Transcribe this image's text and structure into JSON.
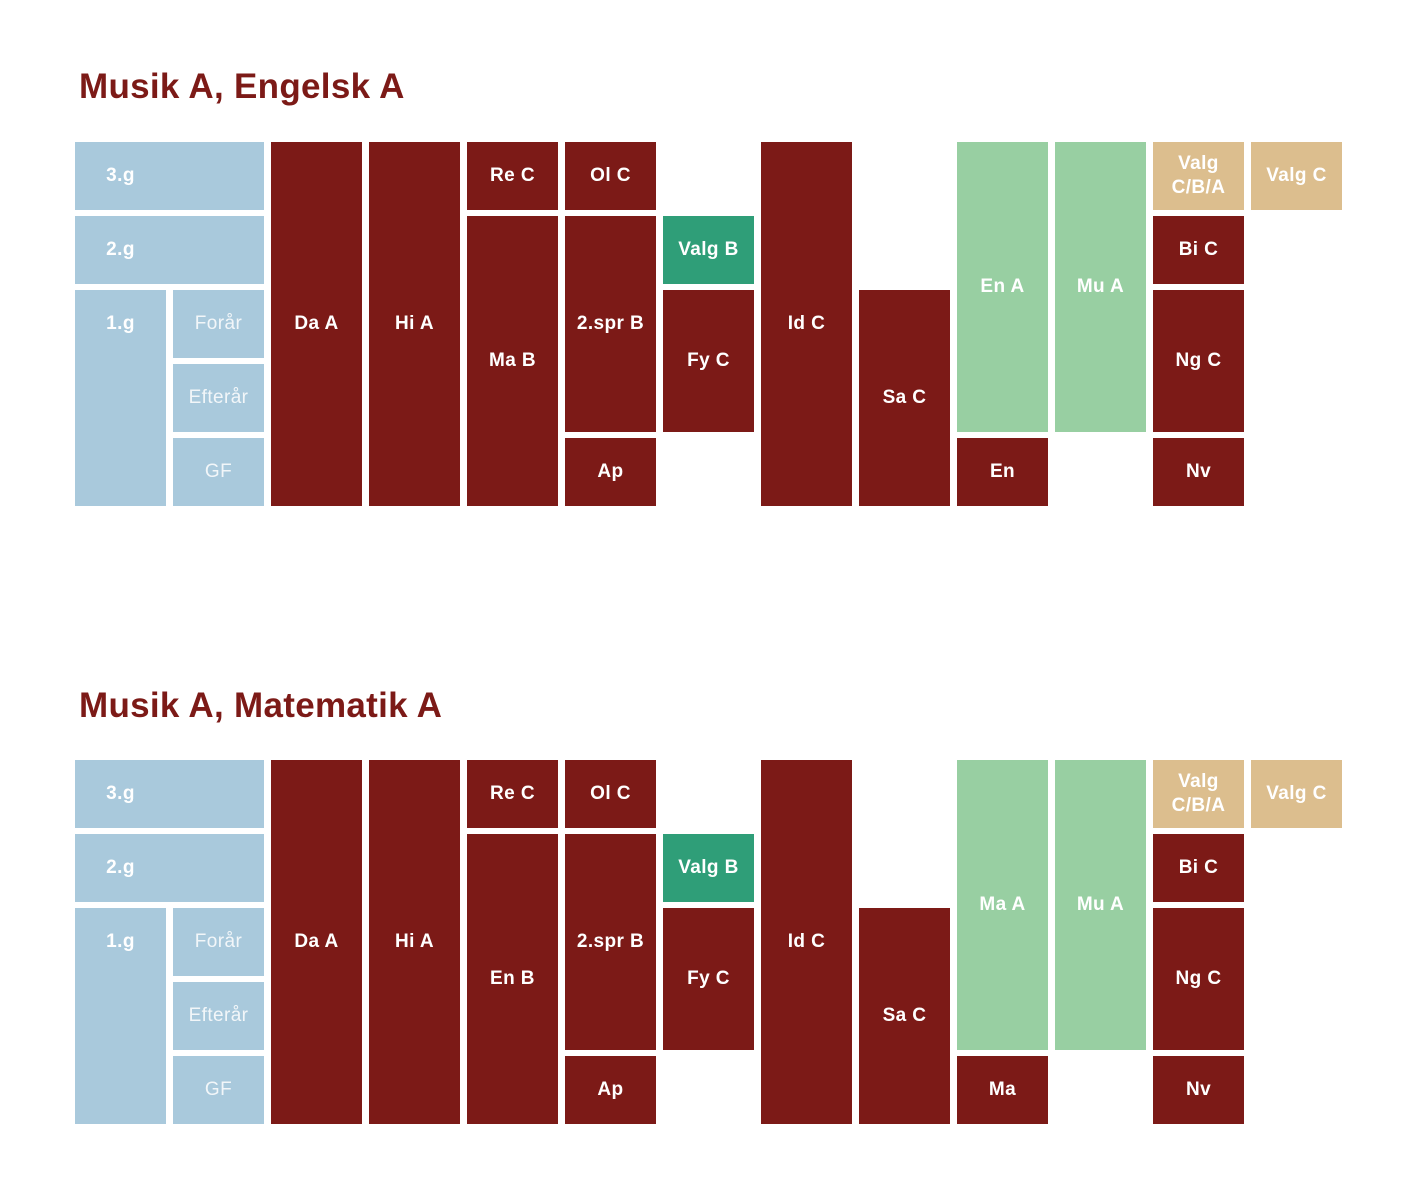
{
  "colors": {
    "background": "#ffffff",
    "title_text": "#7c1a17",
    "red": "#7c1a17",
    "blue": "#a9c9dc",
    "green": "#2f9e78",
    "light_green": "#98cfa2",
    "tan": "#dcbe8e",
    "block_text": "#ffffff"
  },
  "diagrams": [
    {
      "title": "Musik A, Engelsk A",
      "blocks": [
        {
          "label": "3.g",
          "color": "blue",
          "col": 1,
          "row": 1,
          "colspan": 2,
          "rowspan": 1,
          "kind": "year"
        },
        {
          "label": "2.g",
          "color": "blue",
          "col": 1,
          "row": 2,
          "colspan": 2,
          "rowspan": 1,
          "kind": "year"
        },
        {
          "label": "1.g",
          "color": "blue",
          "col": 1,
          "row": 3,
          "colspan": 1,
          "rowspan": 3,
          "kind": "year"
        },
        {
          "label": "Forår",
          "color": "blue",
          "col": 2,
          "row": 3,
          "kind": "semester"
        },
        {
          "label": "Efterår",
          "color": "blue",
          "col": 2,
          "row": 4,
          "kind": "semester"
        },
        {
          "label": "GF",
          "color": "blue",
          "col": 2,
          "row": 5,
          "kind": "semester"
        },
        {
          "label": "Da A",
          "color": "red",
          "col": 3,
          "row": 1,
          "rowspan": 5
        },
        {
          "label": "Hi A",
          "color": "red",
          "col": 4,
          "row": 1,
          "rowspan": 5
        },
        {
          "label": "Re C",
          "color": "red",
          "col": 5,
          "row": 1
        },
        {
          "label": "Ma B",
          "color": "red",
          "col": 5,
          "row": 2,
          "rowspan": 4
        },
        {
          "label": "Ol C",
          "color": "red",
          "col": 6,
          "row": 1
        },
        {
          "label": "2.spr B",
          "color": "red",
          "col": 6,
          "row": 2,
          "rowspan": 3
        },
        {
          "label": "Ap",
          "color": "red",
          "col": 6,
          "row": 5
        },
        {
          "label": "Valg B",
          "color": "green",
          "col": 7,
          "row": 2
        },
        {
          "label": "Fy C",
          "color": "red",
          "col": 7,
          "row": 3,
          "rowspan": 2
        },
        {
          "label": "Id C",
          "color": "red",
          "col": 8,
          "row": 1,
          "rowspan": 5
        },
        {
          "label": "Sa C",
          "color": "red",
          "col": 9,
          "row": 3,
          "rowspan": 3
        },
        {
          "label": "En A",
          "color": "light_green",
          "col": 10,
          "row": 1,
          "rowspan": 4
        },
        {
          "label": "En",
          "color": "red",
          "col": 10,
          "row": 5
        },
        {
          "label": "Mu A",
          "color": "light_green",
          "col": 11,
          "row": 1,
          "rowspan": 4
        },
        {
          "label": "Valg C/B/A",
          "lines": [
            "Valg",
            "C/B/A"
          ],
          "color": "tan",
          "col": 12,
          "row": 1
        },
        {
          "label": "Bi C",
          "color": "red",
          "col": 12,
          "row": 2
        },
        {
          "label": "Ng C",
          "color": "red",
          "col": 12,
          "row": 3,
          "rowspan": 2
        },
        {
          "label": "Nv",
          "color": "red",
          "col": 12,
          "row": 5
        },
        {
          "label": "Valg C",
          "color": "tan",
          "col": 13,
          "row": 1
        }
      ]
    },
    {
      "title": "Musik A, Matematik A",
      "blocks": [
        {
          "label": "3.g",
          "color": "blue",
          "col": 1,
          "row": 1,
          "colspan": 2,
          "rowspan": 1,
          "kind": "year"
        },
        {
          "label": "2.g",
          "color": "blue",
          "col": 1,
          "row": 2,
          "colspan": 2,
          "rowspan": 1,
          "kind": "year"
        },
        {
          "label": "1.g",
          "color": "blue",
          "col": 1,
          "row": 3,
          "colspan": 1,
          "rowspan": 3,
          "kind": "year"
        },
        {
          "label": "Forår",
          "color": "blue",
          "col": 2,
          "row": 3,
          "kind": "semester"
        },
        {
          "label": "Efterår",
          "color": "blue",
          "col": 2,
          "row": 4,
          "kind": "semester"
        },
        {
          "label": "GF",
          "color": "blue",
          "col": 2,
          "row": 5,
          "kind": "semester"
        },
        {
          "label": "Da A",
          "color": "red",
          "col": 3,
          "row": 1,
          "rowspan": 5
        },
        {
          "label": "Hi A",
          "color": "red",
          "col": 4,
          "row": 1,
          "rowspan": 5
        },
        {
          "label": "Re C",
          "color": "red",
          "col": 5,
          "row": 1
        },
        {
          "label": "En B",
          "color": "red",
          "col": 5,
          "row": 2,
          "rowspan": 4
        },
        {
          "label": "Ol C",
          "color": "red",
          "col": 6,
          "row": 1
        },
        {
          "label": "2.spr B",
          "color": "red",
          "col": 6,
          "row": 2,
          "rowspan": 3
        },
        {
          "label": "Ap",
          "color": "red",
          "col": 6,
          "row": 5
        },
        {
          "label": "Valg B",
          "color": "green",
          "col": 7,
          "row": 2
        },
        {
          "label": "Fy C",
          "color": "red",
          "col": 7,
          "row": 3,
          "rowspan": 2
        },
        {
          "label": "Id C",
          "color": "red",
          "col": 8,
          "row": 1,
          "rowspan": 5
        },
        {
          "label": "Sa C",
          "color": "red",
          "col": 9,
          "row": 3,
          "rowspan": 3
        },
        {
          "label": "Ma A",
          "color": "light_green",
          "col": 10,
          "row": 1,
          "rowspan": 4
        },
        {
          "label": "Ma",
          "color": "red",
          "col": 10,
          "row": 5
        },
        {
          "label": "Mu A",
          "color": "light_green",
          "col": 11,
          "row": 1,
          "rowspan": 4
        },
        {
          "label": "Valg C/B/A",
          "lines": [
            "Valg",
            "C/B/A"
          ],
          "color": "tan",
          "col": 12,
          "row": 1
        },
        {
          "label": "Bi C",
          "color": "red",
          "col": 12,
          "row": 2
        },
        {
          "label": "Ng C",
          "color": "red",
          "col": 12,
          "row": 3,
          "rowspan": 2
        },
        {
          "label": "Nv",
          "color": "red",
          "col": 12,
          "row": 5
        },
        {
          "label": "Valg C",
          "color": "tan",
          "col": 13,
          "row": 1
        }
      ]
    }
  ]
}
